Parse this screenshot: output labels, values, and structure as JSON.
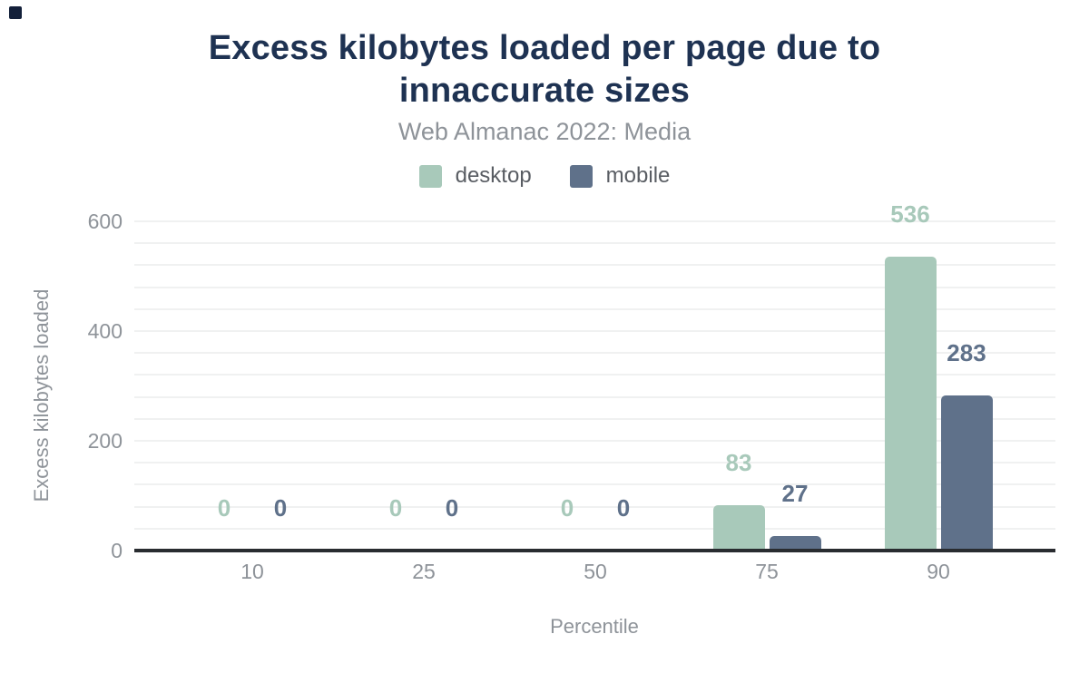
{
  "chart_data": {
    "type": "bar",
    "title": "Excess kilobytes loaded per page due to innaccurate sizes",
    "subtitle": "Web Almanac 2022: Media",
    "xlabel": "Percentile",
    "ylabel": "Excess kilobytes loaded",
    "categories": [
      "10",
      "25",
      "50",
      "75",
      "90"
    ],
    "series": [
      {
        "name": "desktop",
        "color": "#a8c9ba",
        "values": [
          0,
          0,
          0,
          83,
          536
        ]
      },
      {
        "name": "mobile",
        "color": "#5f718a",
        "values": [
          0,
          0,
          0,
          27,
          283
        ]
      }
    ],
    "ylim": [
      0,
      600
    ],
    "yticks": [
      0,
      200,
      400,
      600
    ],
    "grid": {
      "minor_step": 40,
      "color": "#f0f1f1",
      "visible": true
    },
    "value_labels": true,
    "legend_position": "top",
    "style": {
      "title_color": "#1e3252",
      "text_color": "#8e9399",
      "legend_text_color": "#595d63",
      "axis_line_color": "#292c30",
      "background": "#ffffff"
    }
  }
}
